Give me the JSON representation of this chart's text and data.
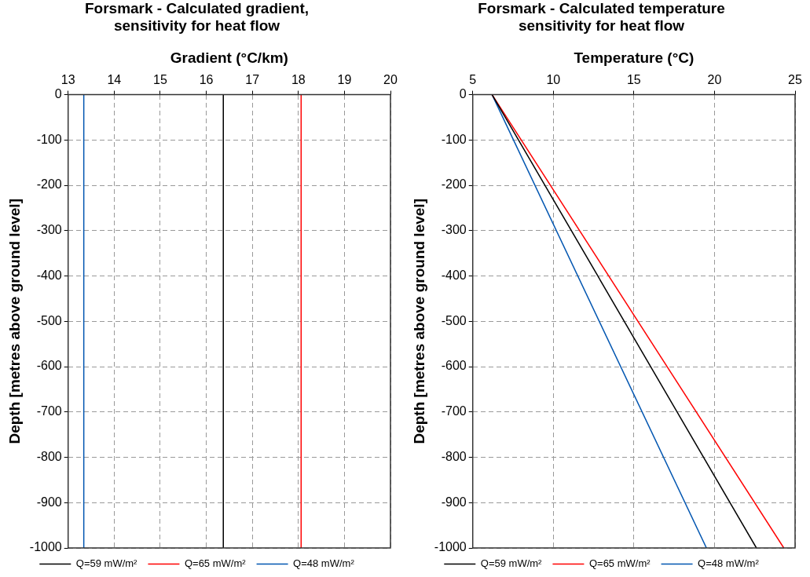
{
  "chart_data": [
    {
      "type": "line",
      "title": "Forsmark - Calculated gradient,\nsensitivity for heat flow",
      "xlabel": "Gradient (°C/km)",
      "ylabel": "Depth [metres above ground level]",
      "xlim": [
        13,
        20
      ],
      "xticks": [
        13,
        14,
        15,
        16,
        17,
        18,
        19,
        20
      ],
      "ylim": [
        -1000,
        0
      ],
      "yticks": [
        0,
        -100,
        -200,
        -300,
        -400,
        -500,
        -600,
        -700,
        -800,
        -900,
        -1000
      ],
      "grid": true,
      "legend": "bottom",
      "marker": "none",
      "line_style": "solid",
      "series": [
        {
          "name": "Q=59 mW/m²",
          "color": "#000000",
          "x": [
            16.37,
            16.37
          ],
          "values": [
            0,
            -1000
          ]
        },
        {
          "name": "Q=65 mW/m²",
          "color": "#ff0000",
          "x": [
            18.06,
            18.06
          ],
          "values": [
            0,
            -1000
          ]
        },
        {
          "name": "Q=48 mW/m²",
          "color": "#0055b0",
          "x": [
            13.34,
            13.34
          ],
          "values": [
            0,
            -1000
          ]
        }
      ]
    },
    {
      "type": "line",
      "title": "Forsmark - Calculated temperature\nsensitivity for heat flow",
      "xlabel": "Temperature (°C)",
      "ylabel": "Depth [metres above ground level]",
      "xlim": [
        5,
        25
      ],
      "xticks": [
        5,
        10,
        15,
        20,
        25
      ],
      "ylim": [
        -1000,
        0
      ],
      "yticks": [
        0,
        -100,
        -200,
        -300,
        -400,
        -500,
        -600,
        -700,
        -800,
        -900,
        -1000
      ],
      "grid": true,
      "legend": "bottom",
      "marker": "none",
      "line_style": "solid",
      "series": [
        {
          "name": "Q=59 mW/m²",
          "color": "#000000",
          "x": [
            6.2,
            22.6
          ],
          "values": [
            0,
            -1000
          ]
        },
        {
          "name": "Q=65 mW/m²",
          "color": "#ff0000",
          "x": [
            6.2,
            24.3
          ],
          "values": [
            0,
            -1000
          ]
        },
        {
          "name": "Q=48 mW/m²",
          "color": "#0055b0",
          "x": [
            6.2,
            19.5
          ],
          "values": [
            0,
            -1000
          ]
        }
      ]
    }
  ]
}
